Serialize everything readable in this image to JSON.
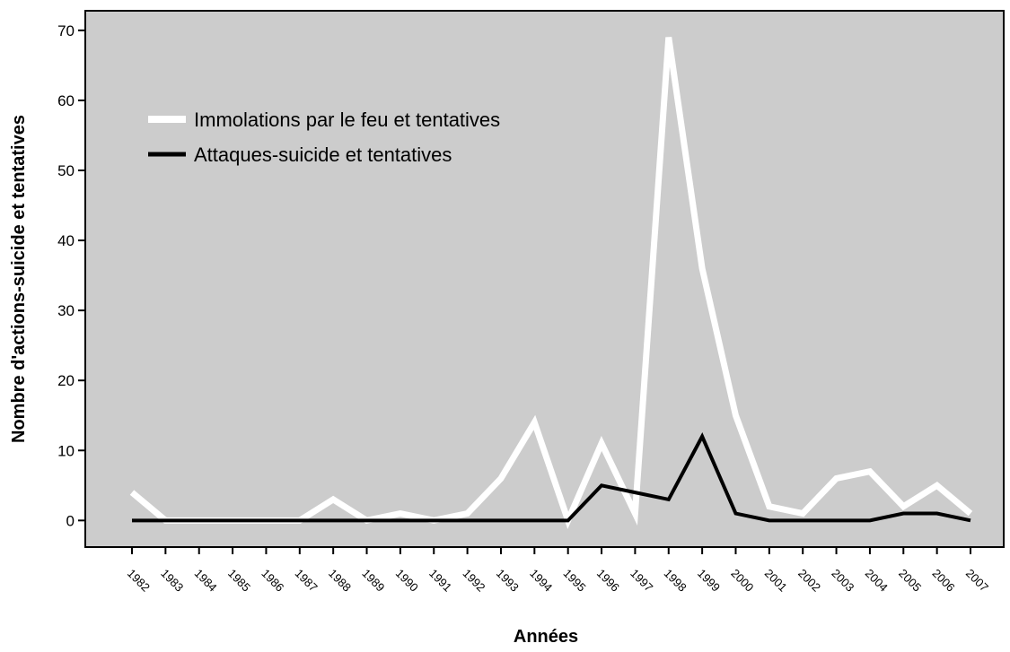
{
  "chart_data": {
    "type": "line",
    "x_label": "Années",
    "y_label": "Nombre d'actions-suicide et tentatives",
    "categories": [
      "1982",
      "1983",
      "1984",
      "1985",
      "1986",
      "1987",
      "1988",
      "1989",
      "1990",
      "1991",
      "1992",
      "1993",
      "1994",
      "1995",
      "1996",
      "1997",
      "1998",
      "1999",
      "2000",
      "2001",
      "2002",
      "2003",
      "2004",
      "2005",
      "2006",
      "2007"
    ],
    "series": [
      {
        "name": "Immolations par le feu et tentatives",
        "color": "#ffffff",
        "values": [
          4,
          0,
          0,
          0,
          0,
          0,
          3,
          0,
          1,
          0,
          1,
          6,
          14,
          0,
          11,
          1,
          69,
          36,
          15,
          2,
          1,
          6,
          7,
          2,
          5,
          1
        ]
      },
      {
        "name": "Attaques-suicide et tentatives",
        "color": "#000000",
        "values": [
          0,
          0,
          0,
          0,
          0,
          0,
          0,
          0,
          0,
          0,
          0,
          0,
          0,
          0,
          5,
          4,
          3,
          12,
          1,
          0,
          0,
          0,
          0,
          1,
          1,
          0
        ]
      }
    ],
    "ylim": [
      -3.8,
      72.8
    ],
    "yticks": [
      0,
      10,
      20,
      30,
      40,
      50,
      60,
      70
    ],
    "background": "#cccccc",
    "legend": "upper left"
  }
}
